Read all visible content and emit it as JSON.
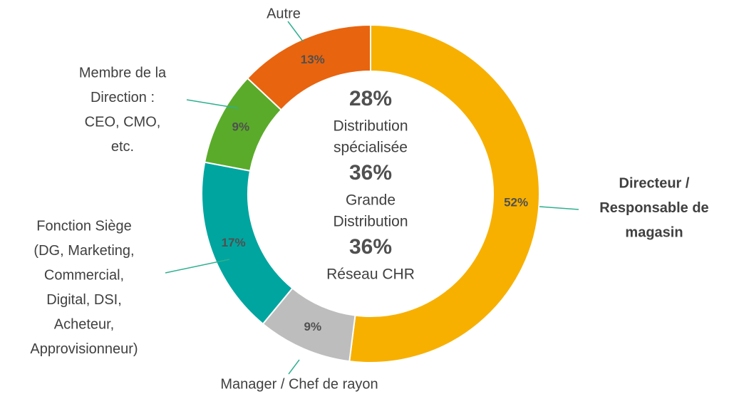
{
  "chart_data": {
    "type": "pie",
    "donut": true,
    "categories": [
      [
        "Directeur /",
        "Responsable de",
        "magasin"
      ],
      [
        "Manager / Chef de rayon"
      ],
      [
        "Fonction Siège",
        "(DG, Marketing,",
        "Commercial,",
        "Digital, DSI,",
        "Acheteur,",
        "Approvisionneur)"
      ],
      [
        "Membre de la",
        "Direction :",
        "CEO, CMO,",
        "etc."
      ],
      [
        "Autre"
      ]
    ],
    "values": [
      52,
      9,
      17,
      9,
      13
    ],
    "value_labels": [
      "52%",
      "9%",
      "17%",
      "9%",
      "13%"
    ],
    "colors": [
      "#f7b000",
      "#bdbdbd",
      "#00a59f",
      "#5aab2a",
      "#e8640f"
    ],
    "annotations": [
      {
        "text": "28%",
        "caption": [
          "Distribution",
          "spécialisée"
        ]
      },
      {
        "text": "36%",
        "caption": [
          "Grande",
          "Distribution"
        ]
      },
      {
        "text": "36%",
        "caption": [
          "Réseau CHR"
        ]
      }
    ]
  }
}
